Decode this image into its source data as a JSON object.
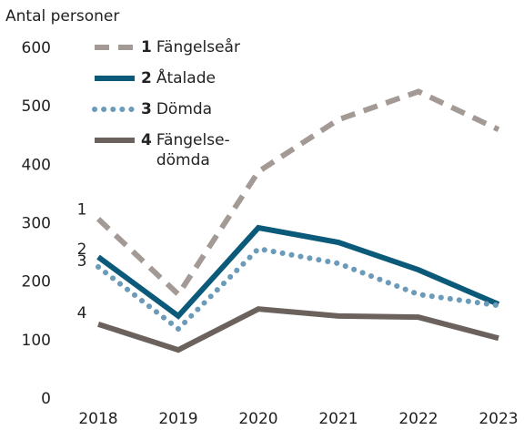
{
  "chart_data": {
    "type": "line",
    "y_label": "Antal personer",
    "categories": [
      "2018",
      "2019",
      "2020",
      "2021",
      "2022",
      "2023"
    ],
    "ylim": [
      0,
      600
    ],
    "yticks": [
      0,
      100,
      200,
      300,
      400,
      500,
      600
    ],
    "grid": false,
    "series": [
      {
        "label": "1",
        "name": "Fängelseår",
        "color": "#a39a96",
        "dash": "dashed",
        "values": [
          308,
          179,
          389,
          478,
          526,
          461
        ]
      },
      {
        "label": "2",
        "name": "Åtalade",
        "color": "#0b5a7a",
        "dash": "solid",
        "values": [
          243,
          142,
          293,
          268,
          221,
          162
        ]
      },
      {
        "label": "3",
        "name": "Dömda",
        "color": "#6b9bb8",
        "dash": "dotted",
        "values": [
          226,
          120,
          257,
          232,
          179,
          160
        ]
      },
      {
        "label": "4",
        "name": "Fängelse-dömda",
        "color": "#6b625e",
        "dash": "solid",
        "values": [
          128,
          84,
          154,
          142,
          140,
          104
        ]
      }
    ]
  }
}
